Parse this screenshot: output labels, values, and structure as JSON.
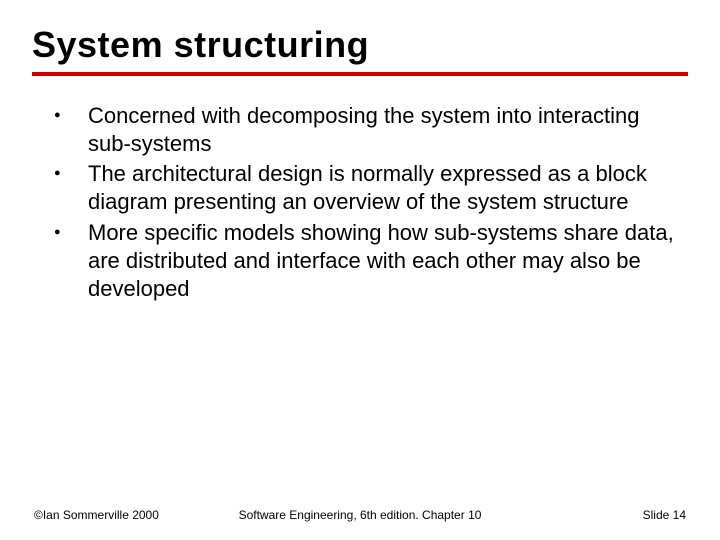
{
  "title": "System structuring",
  "accent_color": "#cc0000",
  "bullets": [
    "Concerned with decomposing the system into interacting sub-systems",
    "The architectural design is normally expressed as a block diagram presenting an overview of the system structure",
    "More specific models showing how sub-systems share data, are distributed and interface with each other may also be developed"
  ],
  "footer": {
    "left": "©Ian Sommerville 2000",
    "center": "Software Engineering, 6th edition. Chapter 10",
    "right": "Slide 14"
  },
  "body_fontsize": 22,
  "title_fontsize": 36
}
